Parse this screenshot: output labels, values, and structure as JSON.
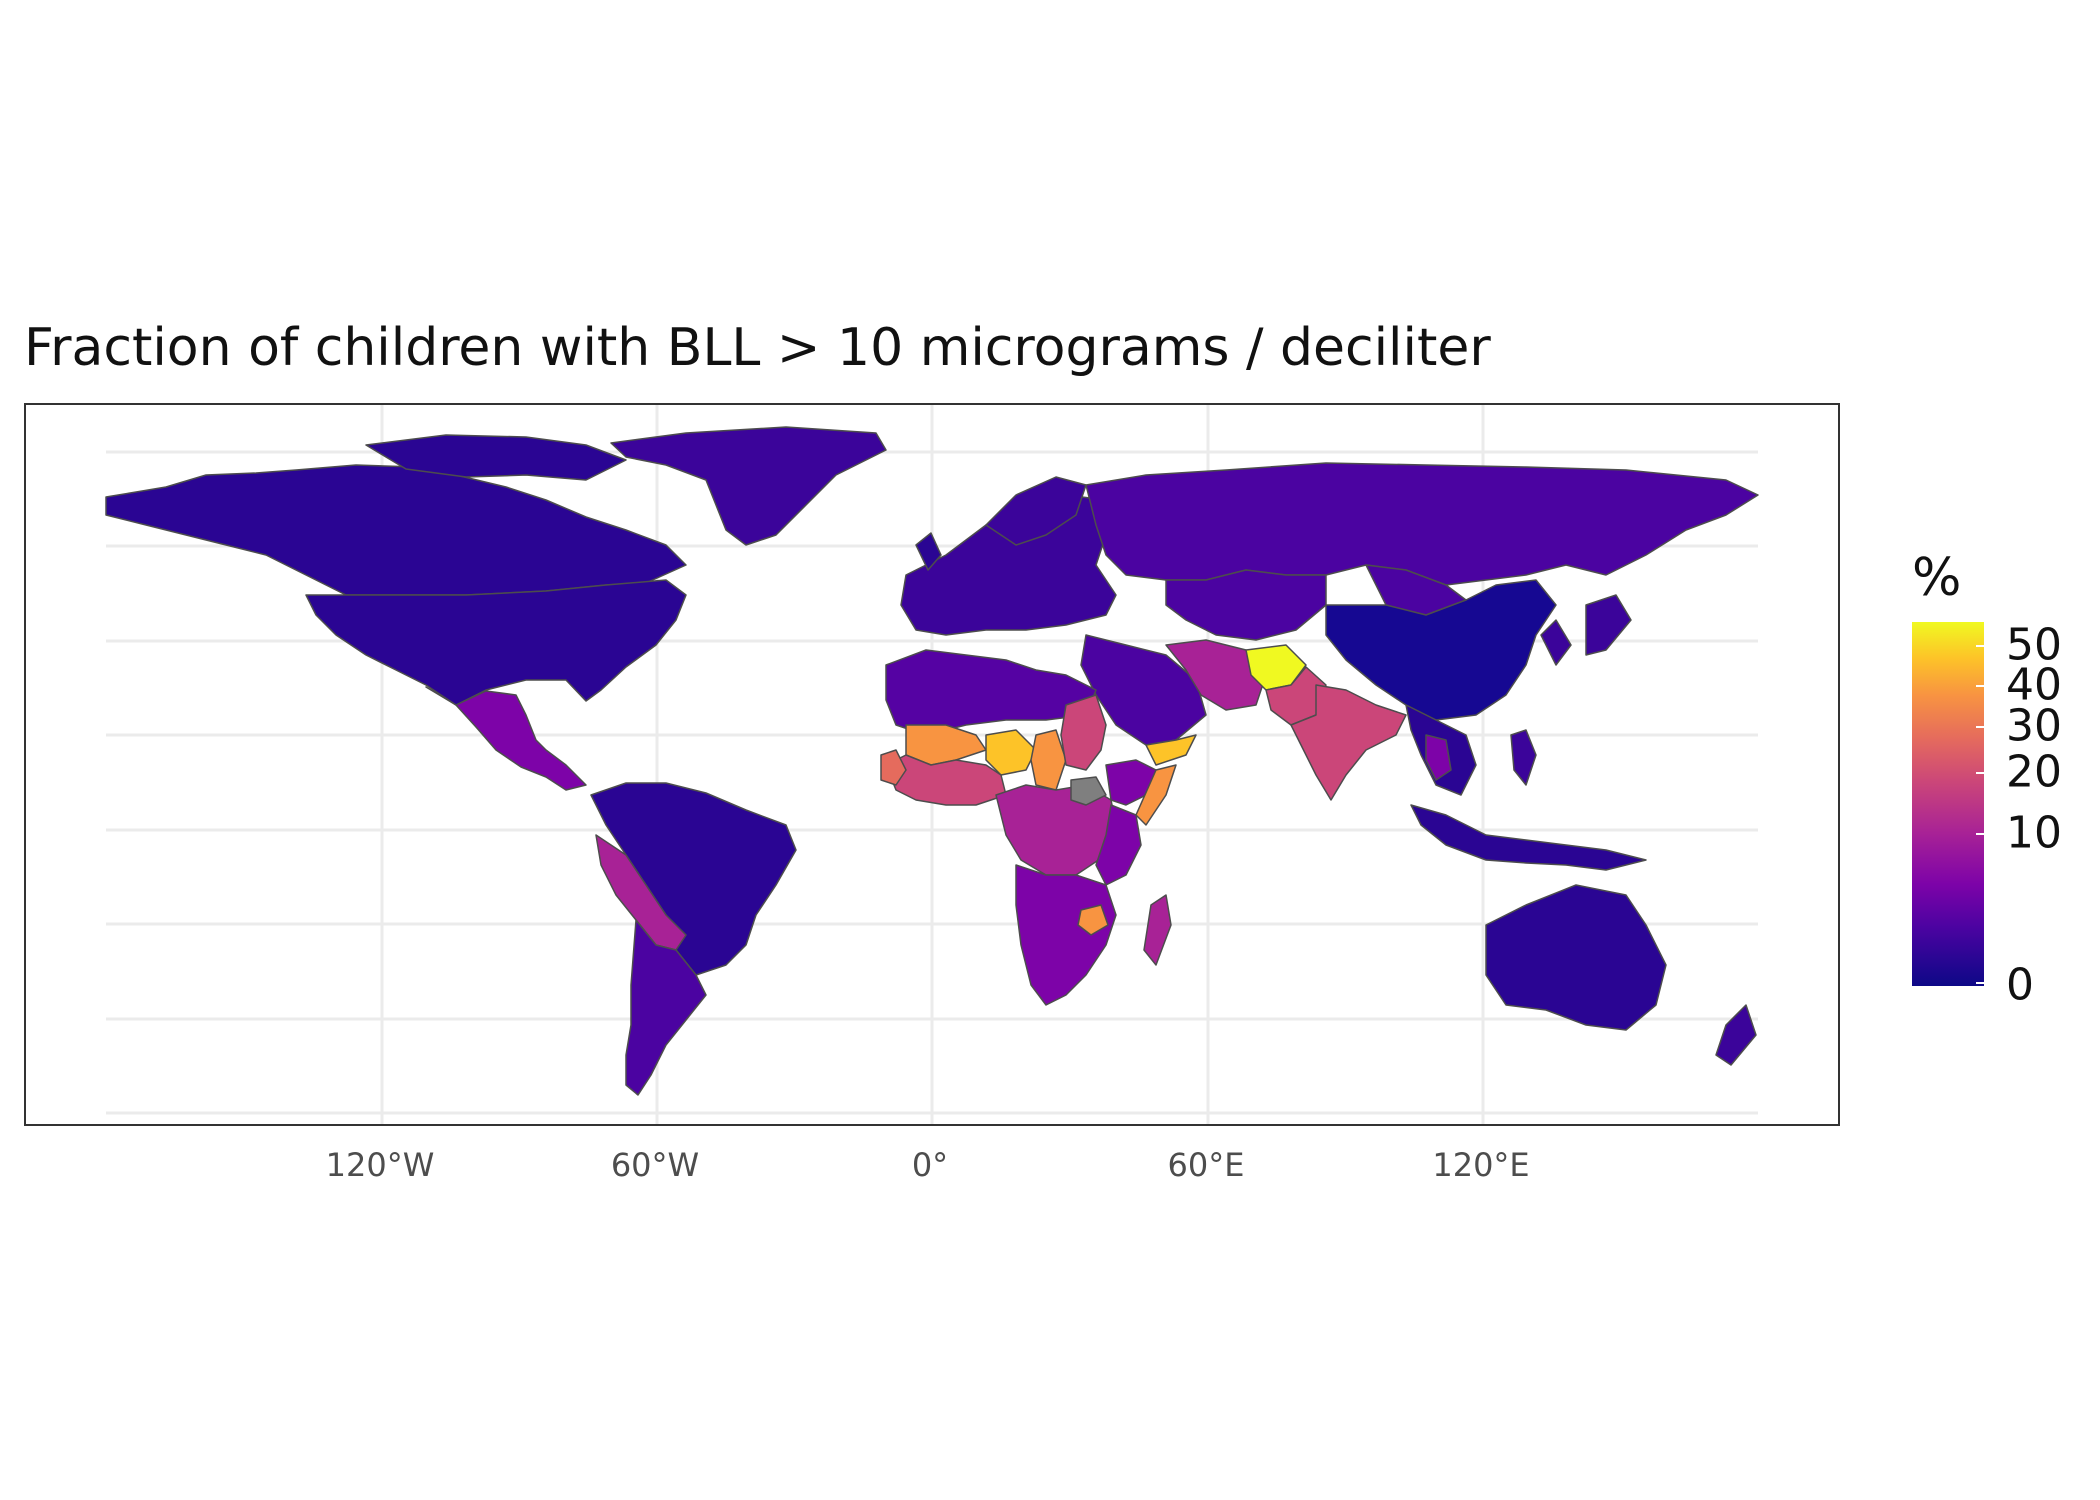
{
  "title": "Fraction of children with BLL > 10 micrograms / deciliter",
  "x_axis_labels": [
    "120°W",
    "60°W",
    "0°",
    "60°E",
    "120°E"
  ],
  "legend": {
    "title": "%",
    "labels": [
      "50",
      "40",
      "30",
      "20",
      "10",
      "0"
    ],
    "colors": [
      "#0d0887",
      "#4b03a1",
      "#7d03a8",
      "#a82296",
      "#cb4679",
      "#e56b5d",
      "#f89441",
      "#fdc328",
      "#f0f921"
    ]
  },
  "map": {
    "projection": "equirectangular",
    "variable": "percent of children with blood lead level above 10 µg/dL",
    "country_values_approx": {
      "Canada": 2,
      "United States": 2,
      "Greenland": 3,
      "Mexico": 6,
      "Central America": 6,
      "Colombia": 3,
      "Venezuela": 5,
      "Brazil": 2,
      "Peru": 10,
      "Bolivia": 12,
      "Argentina": 4,
      "Chile": 4,
      "Russia": 3,
      "Europe": 3,
      "China": 1,
      "Mongolia": 4,
      "Kazakhstan": 4,
      "Iran": 8,
      "Afghanistan": 55,
      "Pakistan": 15,
      "India": 15,
      "Saudi Arabia": 4,
      "Yemen": 45,
      "Somalia": 30,
      "Ethiopia": 8,
      "Egypt": 4,
      "Libya": 5,
      "Algeria": 5,
      "Sudan": 12,
      "Niger": 45,
      "Mali": 35,
      "Chad": 35,
      "Nigeria": 18,
      "Mauritania": 5,
      "Senegal": 30,
      "DR Congo": 12,
      "Angola": 8,
      "Zambia": 8,
      "Zimbabwe": 35,
      "Mozambique": 8,
      "South Africa": 6,
      "Madagascar": 10,
      "Kenya": 6,
      "Tanzania": 7,
      "Indonesia": 2,
      "Southeast Asia": 3,
      "Thailand": 6,
      "Japan": 3,
      "Korea": 3,
      "Philippines": 4,
      "Papua New Guinea": 2,
      "Australia": 2,
      "New Zealand": 3
    }
  }
}
